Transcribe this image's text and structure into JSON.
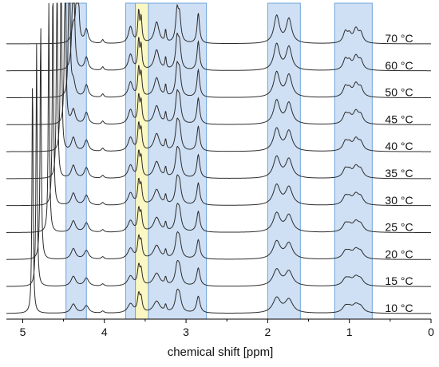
{
  "chart_data": {
    "type": "line",
    "subtype": "stacked-nmr-spectra",
    "xlabel": "chemical shift [ppm]",
    "x_reversed": true,
    "xlim": [
      5.2,
      0
    ],
    "x_ticks": [
      5,
      4,
      3,
      2,
      1,
      0
    ],
    "x_tick_labels": [
      "5",
      "4",
      "3",
      "2",
      "1",
      "0"
    ],
    "series": [
      {
        "name": "10 °C",
        "label": "10 °C",
        "temperature": 10,
        "water_shift": 4.88
      },
      {
        "name": "15 °C",
        "label": "15 °C",
        "temperature": 15,
        "water_shift": 4.83
      },
      {
        "name": "20 °C",
        "label": "20 °C",
        "temperature": 20,
        "water_shift": 4.78
      },
      {
        "name": "25 °C",
        "label": "25 °C",
        "temperature": 25,
        "water_shift": 4.68
      },
      {
        "name": "30 °C",
        "label": "30 °C",
        "temperature": 30,
        "water_shift": 4.63
      },
      {
        "name": "35 °C",
        "label": "35 °C",
        "temperature": 35,
        "water_shift": 4.58
      },
      {
        "name": "40 °C",
        "label": "40 °C",
        "temperature": 40,
        "water_shift": 4.53
      },
      {
        "name": "45 °C",
        "label": "45 °C",
        "temperature": 45,
        "water_shift": 4.48
      },
      {
        "name": "50 °C",
        "label": "50 °C",
        "temperature": 50,
        "water_shift": 4.43
      },
      {
        "name": "60 °C",
        "label": "60 °C",
        "temperature": 60,
        "water_shift": 4.38
      },
      {
        "name": "70 °C",
        "label": "70 °C",
        "temperature": 70,
        "water_shift": 4.33
      }
    ],
    "peaks": [
      {
        "ppm": 4.38,
        "height": 0.55,
        "width": 0.025
      },
      {
        "ppm": 4.22,
        "height": 0.45,
        "width": 0.025
      },
      {
        "ppm": 4.02,
        "height": 0.12,
        "width": 0.015
      },
      {
        "ppm": 3.68,
        "height": 0.55,
        "width": 0.03
      },
      {
        "ppm": 3.58,
        "height": 1.0,
        "width": 0.012
      },
      {
        "ppm": 3.55,
        "height": 0.8,
        "width": 0.012
      },
      {
        "ppm": 3.36,
        "height": 0.7,
        "width": 0.035
      },
      {
        "ppm": 3.25,
        "height": 0.4,
        "width": 0.01
      },
      {
        "ppm": 3.11,
        "height": 1.0,
        "width": 0.02
      },
      {
        "ppm": 3.08,
        "height": 0.8,
        "width": 0.02
      },
      {
        "ppm": 2.85,
        "height": 1.0,
        "width": 0.018
      },
      {
        "ppm": 1.89,
        "height": 0.9,
        "width": 0.04
      },
      {
        "ppm": 1.74,
        "height": 0.8,
        "width": 0.04
      },
      {
        "ppm": 1.05,
        "height": 0.35,
        "width": 0.03
      },
      {
        "ppm": 1.0,
        "height": 0.25,
        "width": 0.03
      },
      {
        "ppm": 0.92,
        "height": 0.45,
        "width": 0.035
      },
      {
        "ppm": 0.86,
        "height": 0.3,
        "width": 0.03
      }
    ],
    "highlight_regions": [
      {
        "from": 4.47,
        "to": 4.22,
        "color": "#cfe0f5",
        "edge": "#6fa3d9"
      },
      {
        "from": 3.74,
        "to": 3.62,
        "color": "#cfe0f5",
        "edge": "#6fa3d9"
      },
      {
        "from": 3.62,
        "to": 3.46,
        "color": "#fbf7c2",
        "edge": "#6fa3d9"
      },
      {
        "from": 3.46,
        "to": 2.75,
        "color": "#cfe0f5",
        "edge": "#6fa3d9"
      },
      {
        "from": 2.0,
        "to": 1.6,
        "color": "#cfe0f5",
        "edge": "#6fa3d9"
      },
      {
        "from": 1.18,
        "to": 0.72,
        "color": "#cfe0f5",
        "edge": "#6fa3d9"
      }
    ],
    "colors": {
      "line": "#2b2b2b",
      "axis": "#000000"
    }
  }
}
